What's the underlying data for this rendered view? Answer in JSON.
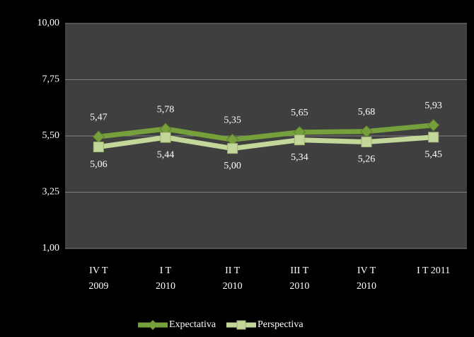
{
  "chart_data": {
    "type": "line",
    "categories": [
      [
        "IV T",
        "2009"
      ],
      [
        "I T",
        "2010"
      ],
      [
        "II T",
        "2010"
      ],
      [
        "III T",
        "2010"
      ],
      [
        "IV T",
        "2010"
      ],
      [
        "I T 2011"
      ]
    ],
    "series": [
      {
        "name": "Expectativa",
        "color": "#76a03c",
        "marker": "diamond",
        "values": [
          5.47,
          5.78,
          5.35,
          5.65,
          5.68,
          5.93
        ],
        "value_labels": [
          "5,47",
          "5,78",
          "5,35",
          "5,65",
          "5,68",
          "5,93"
        ]
      },
      {
        "name": "Perspectiva",
        "color": "#c4d79b",
        "marker": "square",
        "values": [
          5.06,
          5.44,
          5.0,
          5.34,
          5.26,
          5.45
        ],
        "value_labels": [
          "5,06",
          "5,44",
          "5,00",
          "5,34",
          "5,26",
          "5,45"
        ]
      }
    ],
    "ylim": [
      1,
      10
    ],
    "yticks": [
      {
        "value": 1,
        "label": "1,00"
      },
      {
        "value": 3.25,
        "label": "3,25"
      },
      {
        "value": 5.5,
        "label": "5,50"
      },
      {
        "value": 7.75,
        "label": "7,75"
      },
      {
        "value": 10,
        "label": "10,00"
      }
    ],
    "grid": true,
    "legend": "bottom"
  }
}
